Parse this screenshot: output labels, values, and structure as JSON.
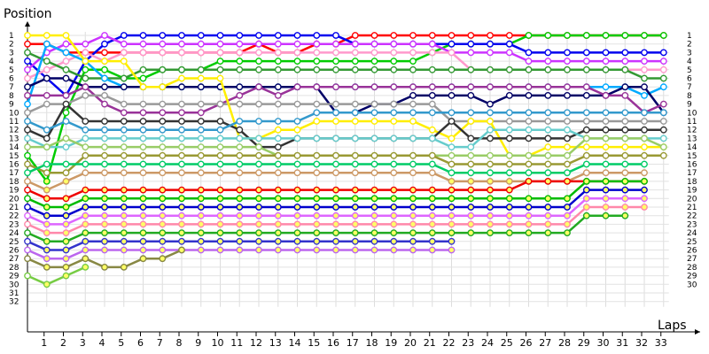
{
  "chart_data": {
    "type": "line",
    "ylabel": "Position",
    "xlabel": "Laps",
    "x": [
      0,
      1,
      2,
      3,
      4,
      5,
      6,
      7,
      8,
      9,
      10,
      11,
      12,
      13,
      14,
      15,
      16,
      17,
      18,
      19,
      20,
      21,
      22,
      23,
      24,
      25,
      26,
      27,
      28,
      29,
      30,
      31,
      32,
      33
    ],
    "x_tick_labels": [
      1,
      2,
      3,
      4,
      5,
      6,
      7,
      8,
      9,
      10,
      11,
      12,
      13,
      14,
      15,
      16,
      17,
      18,
      19,
      20,
      21,
      22,
      23,
      24,
      25,
      26,
      27,
      28,
      29,
      30,
      31,
      32,
      33
    ],
    "y_tick_labels": [
      1,
      2,
      3,
      4,
      5,
      6,
      7,
      8,
      9,
      10,
      11,
      12,
      13,
      14,
      15,
      16,
      17,
      18,
      19,
      20,
      21,
      22,
      23,
      24,
      25,
      26,
      27,
      28,
      29,
      30,
      31,
      32
    ],
    "right_tick_labels": [
      1,
      2,
      3,
      4,
      5,
      6,
      7,
      8,
      9,
      10,
      11,
      12,
      13,
      14,
      15,
      16,
      17,
      18,
      19,
      20,
      21,
      22,
      23,
      24,
      25,
      26,
      27,
      28,
      29,
      30
    ],
    "ylim": [
      1,
      32
    ],
    "grid": true,
    "series": [
      {
        "color": "#ff0000",
        "positions": [
          2,
          2,
          3,
          3,
          3,
          3,
          3,
          3,
          3,
          3,
          3,
          3,
          2,
          3,
          3,
          2,
          2,
          1,
          1,
          1,
          1,
          1,
          1,
          1,
          1,
          1,
          1,
          1,
          1,
          1,
          1,
          1,
          1,
          1
        ]
      },
      {
        "color": "#00cc00",
        "positions": [
          15,
          18,
          10,
          5,
          5,
          6,
          6,
          5,
          5,
          5,
          4,
          4,
          4,
          4,
          4,
          4,
          4,
          4,
          4,
          4,
          4,
          3,
          2,
          2,
          2,
          2,
          1,
          1,
          1,
          1,
          1,
          1,
          1,
          1
        ]
      },
      {
        "color": "#0000ee",
        "positions": [
          4,
          6,
          8,
          4,
          2,
          1,
          1,
          1,
          1,
          1,
          1,
          1,
          1,
          1,
          1,
          1,
          1,
          2,
          2,
          2,
          2,
          2,
          2,
          2,
          2,
          2,
          3,
          3,
          3,
          3,
          3,
          3,
          3,
          3
        ]
      },
      {
        "color": "#cc33ff",
        "positions": [
          5,
          3,
          2,
          2,
          1,
          2,
          2,
          2,
          2,
          2,
          2,
          2,
          2,
          2,
          2,
          2,
          2,
          2,
          2,
          2,
          2,
          2,
          3,
          3,
          3,
          3,
          4,
          4,
          4,
          4,
          4,
          4,
          4,
          4
        ]
      },
      {
        "color": "#ff99cc",
        "positions": [
          6,
          5,
          4,
          3,
          4,
          3,
          3,
          3,
          3,
          3,
          3,
          3,
          3,
          3,
          3,
          3,
          3,
          3,
          3,
          3,
          3,
          3,
          3,
          5,
          5,
          5,
          5,
          5,
          5,
          5,
          5,
          5,
          5,
          5
        ]
      },
      {
        "color": "#339933",
        "positions": [
          3,
          4,
          5,
          6,
          6,
          6,
          5,
          5,
          5,
          5,
          5,
          5,
          5,
          5,
          5,
          5,
          5,
          5,
          5,
          5,
          5,
          5,
          5,
          5,
          5,
          5,
          5,
          5,
          5,
          5,
          5,
          5,
          6,
          6
        ]
      },
      {
        "color": "#00aaff",
        "positions": [
          9,
          2,
          3,
          4,
          6,
          7,
          7,
          7,
          7,
          7,
          7,
          7,
          7,
          7,
          7,
          7,
          7,
          7,
          7,
          7,
          7,
          7,
          7,
          7,
          7,
          7,
          7,
          7,
          7,
          7,
          7,
          7,
          8,
          7
        ]
      },
      {
        "color": "#000066",
        "positions": [
          7,
          6,
          6,
          7,
          7,
          7,
          7,
          7,
          7,
          7,
          7,
          7,
          7,
          7,
          7,
          7,
          10,
          10,
          9,
          9,
          8,
          8,
          8,
          8,
          9,
          8,
          8,
          8,
          8,
          8,
          8,
          7,
          7,
          10
        ]
      },
      {
        "color": "#993399",
        "positions": [
          8,
          8,
          8,
          7,
          9,
          10,
          10,
          10,
          10,
          10,
          9,
          8,
          7,
          8,
          7,
          7,
          7,
          7,
          7,
          7,
          7,
          7,
          7,
          7,
          7,
          7,
          7,
          7,
          7,
          7,
          8,
          8,
          10,
          9
        ]
      },
      {
        "color": "#999999",
        "positions": [
          10,
          9,
          9,
          8,
          8,
          9,
          9,
          9,
          9,
          9,
          9,
          9,
          9,
          9,
          9,
          9,
          9,
          9,
          9,
          9,
          9,
          9,
          11,
          11,
          11,
          11,
          11,
          11,
          11,
          11,
          11,
          11,
          11,
          11
        ]
      },
      {
        "color": "#ffee00",
        "positions": [
          1,
          1,
          1,
          4,
          4,
          4,
          7,
          7,
          6,
          6,
          6,
          13,
          13,
          12,
          12,
          11,
          11,
          11,
          11,
          11,
          11,
          12,
          13,
          11,
          11,
          15,
          15,
          14,
          14,
          14,
          14,
          14,
          14,
          14
        ]
      },
      {
        "color": "#333333",
        "positions": [
          12,
          13,
          9,
          11,
          11,
          11,
          11,
          11,
          11,
          11,
          11,
          12,
          14,
          14,
          13,
          13,
          13,
          13,
          13,
          13,
          13,
          13,
          11,
          13,
          13,
          13,
          13,
          13,
          13,
          12,
          12,
          12,
          12,
          12
        ]
      },
      {
        "color": "#3399cc",
        "positions": [
          11,
          12,
          11,
          12,
          12,
          12,
          12,
          12,
          12,
          12,
          12,
          11,
          11,
          11,
          11,
          10,
          10,
          10,
          10,
          10,
          10,
          10,
          10,
          10,
          10,
          10,
          10,
          10,
          10,
          10,
          10,
          10,
          10,
          10
        ]
      },
      {
        "color": "#66cccc",
        "positions": [
          13,
          14,
          14,
          13,
          13,
          13,
          13,
          13,
          13,
          13,
          13,
          13,
          13,
          13,
          13,
          13,
          13,
          13,
          13,
          13,
          13,
          13,
          14,
          14,
          12,
          12,
          12,
          12,
          12,
          13,
          13,
          13,
          13,
          13
        ]
      },
      {
        "color": "#99cc66",
        "positions": [
          14,
          14,
          13,
          14,
          14,
          14,
          14,
          14,
          14,
          14,
          14,
          14,
          14,
          15,
          15,
          15,
          15,
          15,
          15,
          15,
          15,
          15,
          15,
          15,
          15,
          15,
          15,
          15,
          15,
          13,
          13,
          13,
          13,
          14
        ]
      },
      {
        "color": "#999933",
        "positions": [
          16,
          17,
          17,
          15,
          15,
          15,
          15,
          15,
          15,
          15,
          15,
          15,
          15,
          15,
          15,
          15,
          15,
          15,
          15,
          15,
          15,
          15,
          16,
          16,
          16,
          16,
          16,
          16,
          16,
          15,
          15,
          15,
          15,
          15
        ]
      },
      {
        "color": "#00cc66",
        "positions": [
          17,
          16,
          16,
          16,
          16,
          16,
          16,
          16,
          16,
          16,
          16,
          16,
          16,
          16,
          16,
          16,
          16,
          16,
          16,
          16,
          16,
          16,
          17,
          17,
          17,
          17,
          17,
          17,
          17,
          16,
          16,
          16,
          16
        ]
      },
      {
        "color": "#cc9966",
        "positions": [
          18,
          19,
          18,
          17,
          17,
          17,
          17,
          17,
          17,
          17,
          17,
          17,
          17,
          17,
          17,
          17,
          17,
          17,
          17,
          17,
          17,
          17,
          18,
          18,
          18,
          18,
          18,
          18,
          18,
          17,
          17,
          17,
          17
        ]
      },
      {
        "color": "#ee0000",
        "positions": [
          19,
          20,
          20,
          19,
          19,
          19,
          19,
          19,
          19,
          19,
          19,
          19,
          19,
          19,
          19,
          19,
          19,
          19,
          19,
          19,
          19,
          19,
          19,
          19,
          19,
          19,
          18,
          18,
          18,
          18,
          18,
          18,
          18
        ]
      },
      {
        "color": "#00bb00",
        "positions": [
          20,
          21,
          21,
          20,
          20,
          20,
          20,
          20,
          20,
          20,
          20,
          20,
          20,
          20,
          20,
          20,
          20,
          20,
          20,
          20,
          20,
          20,
          20,
          20,
          20,
          20,
          20,
          20,
          20,
          18,
          18,
          18,
          18
        ]
      },
      {
        "color": "#0000cc",
        "positions": [
          21,
          22,
          22,
          21,
          21,
          21,
          21,
          21,
          21,
          21,
          21,
          21,
          21,
          21,
          21,
          21,
          21,
          21,
          21,
          21,
          21,
          21,
          21,
          21,
          21,
          21,
          21,
          21,
          21,
          19,
          19,
          19,
          19
        ]
      },
      {
        "color": "#dd66ff",
        "positions": [
          22,
          23,
          23,
          22,
          22,
          22,
          22,
          22,
          22,
          22,
          22,
          22,
          22,
          22,
          22,
          22,
          22,
          22,
          22,
          22,
          22,
          22,
          22,
          22,
          22,
          22,
          22,
          22,
          22,
          20,
          20,
          20,
          20
        ]
      },
      {
        "color": "#ff88aa",
        "positions": [
          23,
          24,
          24,
          23,
          23,
          23,
          23,
          23,
          23,
          23,
          23,
          23,
          23,
          23,
          23,
          23,
          23,
          23,
          23,
          23,
          23,
          23,
          23,
          23,
          23,
          23,
          23,
          23,
          23,
          21,
          21,
          21,
          21
        ]
      },
      {
        "color": "#22aa22",
        "positions": [
          24,
          25,
          25,
          24,
          24,
          24,
          24,
          24,
          24,
          24,
          24,
          24,
          24,
          24,
          24,
          24,
          24,
          24,
          24,
          24,
          24,
          24,
          24,
          24,
          24,
          24,
          24,
          24,
          24,
          22,
          22,
          22
        ]
      },
      {
        "color": "#3333cc",
        "positions": [
          25,
          26,
          26,
          25,
          25,
          25,
          25,
          25,
          25,
          25,
          25,
          25,
          25,
          25,
          25,
          25,
          25,
          25,
          25,
          25,
          25,
          25,
          25
        ]
      },
      {
        "color": "#bb66ee",
        "positions": [
          26,
          27,
          27,
          26,
          26,
          26,
          26,
          26,
          26,
          26,
          26,
          26,
          26,
          26,
          26,
          26,
          26,
          26,
          26,
          26,
          26,
          26,
          26
        ]
      },
      {
        "color": "#888844",
        "positions": [
          27,
          28,
          28,
          27,
          28,
          28,
          27,
          27,
          26
        ]
      },
      {
        "color": "#77cc44",
        "positions": [
          29,
          30,
          29,
          28
        ]
      }
    ]
  }
}
